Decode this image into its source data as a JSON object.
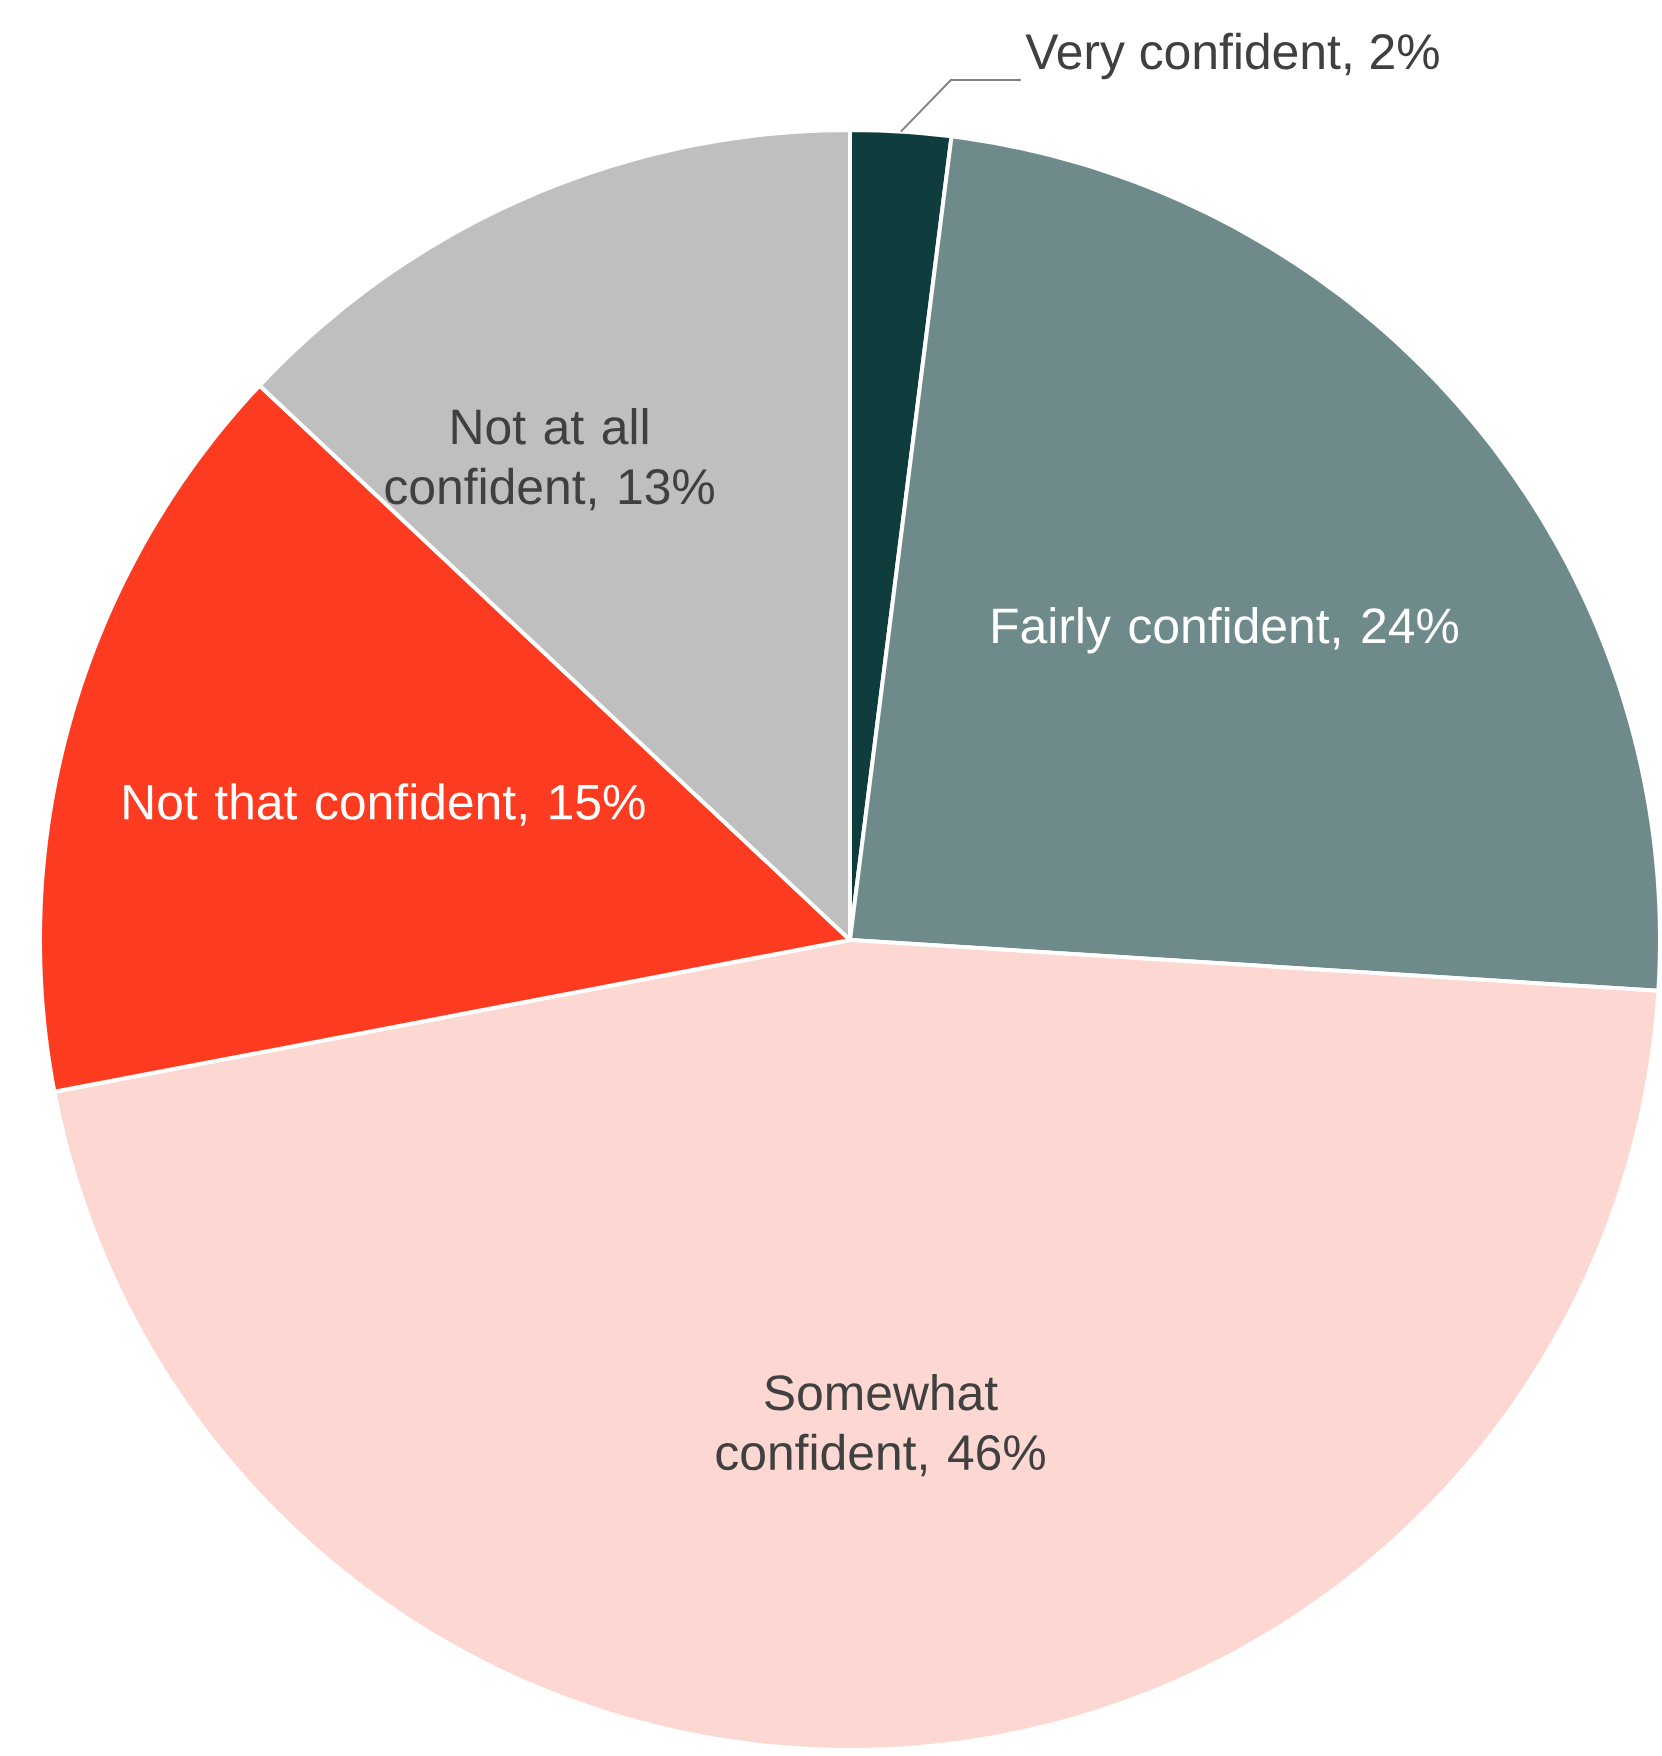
{
  "chart_data": {
    "type": "pie",
    "categories": [
      "Very confident",
      "Fairly confident",
      "Somewhat confident",
      "Not that confident",
      "Not at all confident"
    ],
    "values": [
      2,
      24,
      46,
      15,
      13
    ],
    "value_labels": [
      ", 2%",
      ", 24%",
      ", 46%",
      ", 15%",
      ", 13%"
    ],
    "colors": [
      "#0f3d3e",
      "#6f8a8a",
      "#fdd7d2",
      "#fc3b20",
      "#bfbfbf"
    ]
  }
}
